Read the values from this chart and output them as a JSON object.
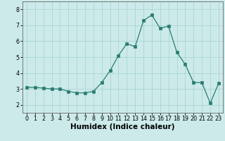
{
  "x": [
    0,
    1,
    2,
    3,
    4,
    5,
    6,
    7,
    8,
    9,
    10,
    11,
    12,
    13,
    14,
    15,
    16,
    17,
    18,
    19,
    20,
    21,
    22,
    23
  ],
  "y": [
    3.1,
    3.1,
    3.05,
    3.0,
    3.0,
    2.85,
    2.75,
    2.75,
    2.85,
    3.4,
    4.15,
    5.1,
    5.85,
    5.65,
    7.3,
    7.65,
    6.8,
    6.95,
    5.3,
    4.55,
    3.4,
    3.4,
    2.1,
    3.35
  ],
  "xlabel": "Humidex (Indice chaleur)",
  "ylim": [
    1.5,
    8.5
  ],
  "xlim": [
    -0.5,
    23.5
  ],
  "yticks": [
    2,
    3,
    4,
    5,
    6,
    7,
    8
  ],
  "xticks": [
    0,
    1,
    2,
    3,
    4,
    5,
    6,
    7,
    8,
    9,
    10,
    11,
    12,
    13,
    14,
    15,
    16,
    17,
    18,
    19,
    20,
    21,
    22,
    23
  ],
  "line_color": "#2a7d70",
  "marker_color": "#2a7d70",
  "bg_color": "#cceaea",
  "grid_color": "#aad4d4",
  "tick_label_fontsize": 5.8,
  "xlabel_fontsize": 7.5,
  "xlabel_fontweight": "bold"
}
